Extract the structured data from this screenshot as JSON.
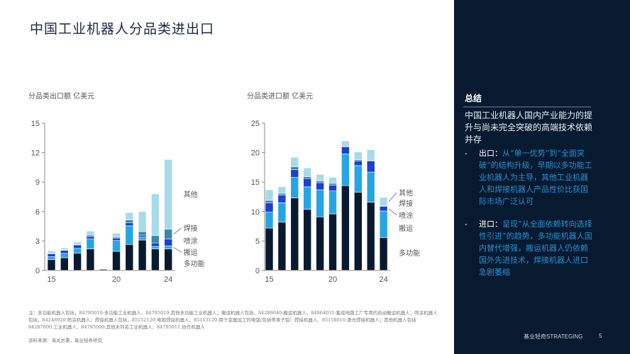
{
  "page": {
    "title": "中国工业机器人分品类进出口",
    "notes": "注：多功能机器人包括，84795010:多功能工业机器人、84795019:其他多功能工业机器人；搬运机器人包括，84289040:搬运机器人、84864031:集成电路工厂专用的自动搬运机器人；喷涂机器人包括，84248920:喷涂机器人；焊接机器人包括，85152120:电阻焊接机器人、85153120:用于金属加工的电弧(包括等离子弧）焊接机器人、85158010:激光焊接机器人；其他机器人包括84287000:工业机器人、84795090:其他未列名工业机器人、84795011:协作机器人",
    "source": "资料来源：海关总署，基业轻奇研究"
  },
  "panel": {
    "heading": "总结",
    "summary": "中国工业机器人国内产业能力的提升与尚未完全突破的高端技术依赖并存",
    "bullets": [
      {
        "dash": "-",
        "lead": "出口：",
        "text": "从“单一优势”到“全面突破”的结构升级，早期以多功能工业机器人为主导，其他工业机器人和焊接机器人产品性价比获国际市场广泛认可"
      },
      {
        "dash": "-",
        "lead": "进口：",
        "text": "呈现“从全面依赖转向选择性引进”的趋势，多功能机器人国内替代增强，搬运机器人仍依赖国外先进技术，焊接机器人进口急剧萎缩"
      }
    ],
    "footer_brand": "基业轻奇STRATEGING",
    "footer_page": "5"
  },
  "colors": {
    "多功能": "#0a1a2e",
    "搬运": "#25a6e3",
    "喷涂": "#1c3fd4",
    "焊接": "#3b87a6",
    "其他": "#a8dbe9"
  },
  "chart_data": [
    {
      "type": "bar",
      "stacked": true,
      "title": "分品类出口额 亿美元",
      "xlabel": "",
      "ylabel": "亿美元",
      "categories": [
        "15",
        "16",
        "17",
        "18",
        "19",
        "20",
        "21",
        "22",
        "23",
        "24"
      ],
      "x_tick_labels": [
        "15",
        "20",
        "24"
      ],
      "y_ticks": [
        0,
        3,
        6,
        9,
        12,
        15
      ],
      "ylim": [
        0,
        15
      ],
      "grid": false,
      "series": [
        {
          "name": "多功能",
          "values": [
            1.1,
            1.3,
            1.75,
            2.2,
            0.12,
            1.95,
            2.65,
            3.1,
            2.2,
            2.2
          ]
        },
        {
          "name": "搬运",
          "values": [
            0.3,
            0.45,
            0.5,
            1.0,
            0.02,
            1.1,
            1.9,
            0.3,
            0.25,
            0.3
          ]
        },
        {
          "name": "喷涂",
          "values": [
            0.3,
            0.3,
            0.35,
            0.25,
            0.02,
            0.25,
            0.3,
            0.2,
            0.35,
            0.7
          ]
        },
        {
          "name": "焊接",
          "values": [
            0.05,
            0.05,
            0.05,
            0.15,
            0.02,
            0.1,
            0.3,
            0.35,
            0.75,
            1.0
          ]
        },
        {
          "name": "其他",
          "values": [
            0.25,
            0.2,
            0.25,
            0.4,
            0.02,
            0.4,
            0.75,
            2.05,
            4.25,
            7.1
          ]
        }
      ],
      "legend": "right-of-last-bar",
      "legend_order": [
        "其他",
        "焊接",
        "喷涂",
        "搬运",
        "多功能"
      ]
    },
    {
      "type": "bar",
      "stacked": true,
      "title": "分品类进口额 亿美元",
      "xlabel": "",
      "ylabel": "亿美元",
      "categories": [
        "15",
        "16",
        "17",
        "18",
        "19",
        "20",
        "21",
        "22",
        "23",
        "24"
      ],
      "x_tick_labels": [
        "15",
        "20",
        "24"
      ],
      "y_ticks": [
        0,
        5,
        10,
        15,
        20,
        25
      ],
      "ylim": [
        0,
        25
      ],
      "grid": false,
      "series": [
        {
          "name": "多功能",
          "values": [
            7.2,
            8.2,
            12.3,
            10.4,
            9.1,
            9.6,
            14.4,
            13.3,
            11.6,
            5.6
          ]
        },
        {
          "name": "搬运",
          "values": [
            2.7,
            3.3,
            3.5,
            3.8,
            4.6,
            3.9,
            5.4,
            4.5,
            5.1,
            4.5
          ]
        },
        {
          "name": "喷涂",
          "values": [
            1.6,
            1.3,
            1.3,
            1.4,
            1.2,
            1.0,
            1.2,
            0.8,
            1.9,
            0.8
          ]
        },
        {
          "name": "焊接",
          "values": [
            0.4,
            0.3,
            0.5,
            0.3,
            0.3,
            0.3,
            0.1,
            0.2,
            0.1,
            0.1
          ]
        },
        {
          "name": "其他",
          "values": [
            1.8,
            1.1,
            1.6,
            1.5,
            1.1,
            1.0,
            0.9,
            1.3,
            1.8,
            1.4
          ]
        }
      ],
      "legend": "right-of-last-bar",
      "legend_order": [
        "其他",
        "焊接",
        "喷涂",
        "搬运",
        "多功能"
      ]
    }
  ]
}
